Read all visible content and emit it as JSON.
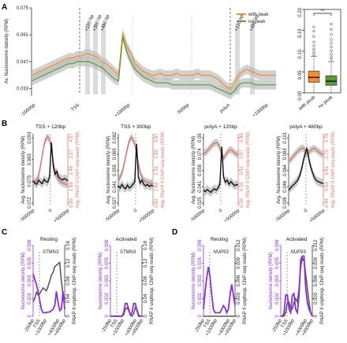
{
  "panels": {
    "A": "A",
    "B": "B",
    "C": "C",
    "D": "D"
  },
  "chart_data": [
    {
      "id": "A-main",
      "type": "line",
      "ylabel": "Av. Nucleosome density (RPM)",
      "yticks": [
        "0.075",
        "0.061",
        "0.047",
        "0.033"
      ],
      "ylim": [
        0.03,
        0.075
      ],
      "xticks": [
        "-1000bp",
        "TSS",
        "+1000bp",
        "-500bp",
        "polyA",
        "+1000bp"
      ],
      "vlines": [
        "TSS",
        "polyA"
      ],
      "peak_labels": [
        "+120 bp",
        "+300 bp",
        "+480 bp",
        "+120 bp",
        "+480 bp"
      ],
      "legend_position": "top-right",
      "colors": {
        "with_peak": "#f28e2b",
        "no_peak": "#5a9a2e",
        "band": "#bdbdbd"
      },
      "series": [
        {
          "name": "with peak",
          "values": [
            0.04,
            0.041,
            0.042,
            0.043,
            0.044,
            0.045,
            0.046,
            0.047,
            0.048,
            0.049,
            0.049,
            0.05,
            0.05,
            0.051,
            0.051,
            0.05,
            0.049,
            0.047,
            0.046,
            0.044,
            0.042,
            0.04,
            0.062,
            0.055,
            0.051,
            0.046,
            0.044,
            0.042,
            0.041,
            0.04,
            0.04,
            0.041,
            0.04,
            0.04,
            0.04,
            0.041,
            0.04,
            0.04,
            0.04,
            0.04,
            0.041,
            0.04,
            0.04,
            0.04,
            0.039,
            0.038,
            0.036,
            0.034,
            0.033,
            0.036,
            0.04,
            0.042,
            0.043,
            0.042,
            0.041,
            0.04,
            0.04,
            0.04,
            0.04,
            0.04
          ]
        },
        {
          "name": "no peak",
          "values": [
            0.037,
            0.038,
            0.039,
            0.04,
            0.041,
            0.042,
            0.043,
            0.044,
            0.045,
            0.046,
            0.046,
            0.047,
            0.047,
            0.047,
            0.047,
            0.046,
            0.045,
            0.044,
            0.042,
            0.04,
            0.038,
            0.037,
            0.06,
            0.052,
            0.047,
            0.043,
            0.041,
            0.039,
            0.038,
            0.037,
            0.036,
            0.036,
            0.036,
            0.036,
            0.035,
            0.035,
            0.035,
            0.035,
            0.035,
            0.035,
            0.035,
            0.035,
            0.035,
            0.035,
            0.034,
            0.033,
            0.032,
            0.031,
            0.03,
            0.032,
            0.035,
            0.036,
            0.036,
            0.036,
            0.035,
            0.035,
            0.035,
            0.035,
            0.035,
            0.035
          ]
        }
      ]
    },
    {
      "id": "A-box",
      "type": "box",
      "yticks": [
        "0.00",
        "0.05",
        "0.10",
        "0.15",
        "0.20"
      ],
      "ylim": [
        0,
        0.2
      ],
      "categories": [
        "with peak",
        "no peak"
      ],
      "significance": "**",
      "boxes": [
        {
          "name": "with peak",
          "q1": 0.025,
          "median": 0.037,
          "q3": 0.052,
          "whisker_low": 0.0,
          "whisker_high": 0.088,
          "outliers": [
            0.092,
            0.098,
            0.105,
            0.113,
            0.122,
            0.135,
            0.148,
            0.158
          ]
        },
        {
          "name": "no peak",
          "q1": 0.018,
          "median": 0.028,
          "q3": 0.041,
          "whisker_low": 0.0,
          "whisker_high": 0.075,
          "outliers": [
            0.08,
            0.086,
            0.093,
            0.101,
            0.11,
            0.119,
            0.128,
            0.14,
            0.152,
            0.165
          ]
        }
      ]
    },
    {
      "id": "B1",
      "type": "line",
      "title": "TSS + 120bp",
      "ylabel": "Avg. Nucleosome density (RPM)",
      "yticks": [
        "0.072",
        "0.075",
        "0.083",
        "0.093"
      ],
      "ylabel2": "Avg. RNAP II ChIP-seq reads (RPM)",
      "yticks2": [
        "0.89",
        "1.68",
        "2.48",
        "3.27",
        "4.07"
      ],
      "xticks": [
        "-5000bp",
        "0",
        "+5000bp"
      ],
      "colors": {
        "nucleosome": "#111111",
        "rnap": "#d9786b",
        "band": "#bfbfbf"
      },
      "series": [
        {
          "name": "nucleosome",
          "values": [
            0.35,
            0.32,
            0.3,
            0.36,
            0.33,
            0.31,
            0.37,
            0.34,
            0.33,
            0.4,
            0.88,
            0.55,
            0.44,
            0.48,
            0.4,
            0.38,
            0.36,
            0.38,
            0.37,
            0.35
          ]
        },
        {
          "name": "rnap",
          "values": [
            0.3,
            0.33,
            0.36,
            0.42,
            0.55,
            0.7,
            0.85,
            0.93,
            0.96,
            0.92,
            0.8,
            0.62,
            0.48,
            0.4,
            0.36,
            0.34,
            0.32,
            0.31,
            0.3,
            0.3
          ]
        }
      ]
    },
    {
      "id": "B2",
      "type": "line",
      "title": "TSS + 300bp",
      "ylabel": "Avg. Nucleosome density (RPM)",
      "yticks": [
        "0.027",
        "0.041",
        "0.055",
        "0.069",
        "0.082"
      ],
      "ylabel2": "Avg. RNAP II ChIP-seq reads (RPM)",
      "yticks2": [
        "0.92",
        "1.63",
        "2.31",
        "2.99",
        "3.67"
      ],
      "xticks": [
        "-5000bp",
        "0",
        "+5000bp"
      ],
      "colors": {
        "nucleosome": "#111111",
        "rnap": "#d9786b",
        "band": "#bfbfbf"
      },
      "series": [
        {
          "name": "nucleosome",
          "values": [
            0.28,
            0.25,
            0.3,
            0.26,
            0.24,
            0.29,
            0.25,
            0.27,
            0.3,
            0.33,
            0.86,
            0.4,
            0.32,
            0.36,
            0.3,
            0.28,
            0.3,
            0.27,
            0.29,
            0.28
          ]
        },
        {
          "name": "rnap",
          "values": [
            0.35,
            0.4,
            0.46,
            0.55,
            0.68,
            0.8,
            0.9,
            0.95,
            0.93,
            0.86,
            0.72,
            0.58,
            0.46,
            0.4,
            0.36,
            0.34,
            0.33,
            0.32,
            0.32,
            0.31
          ]
        }
      ]
    },
    {
      "id": "B3",
      "type": "line",
      "title": "polyA + 120bp",
      "ylabel": "Avg. Nucleosome density (RPM)",
      "yticks": [
        "0.025",
        "0.041",
        "0.058",
        "0.074",
        "0.09"
      ],
      "ylabel2": "Avg. RNAP II ChIP-seq reads (RPM)",
      "yticks2": [
        "0.19",
        "0.35",
        "0.51",
        "0.67",
        "0.83"
      ],
      "xticks": [
        "-5000bp",
        "0",
        "+5000bp"
      ],
      "colors": {
        "nucleosome": "#111111",
        "rnap": "#d9786b",
        "band": "#bfbfbf"
      },
      "series": [
        {
          "name": "nucleosome",
          "values": [
            0.22,
            0.2,
            0.23,
            0.21,
            0.19,
            0.22,
            0.24,
            0.22,
            0.25,
            0.3,
            0.82,
            0.4,
            0.33,
            0.36,
            0.3,
            0.34,
            0.31,
            0.28,
            0.3,
            0.29
          ]
        },
        {
          "name": "rnap",
          "values": [
            0.72,
            0.74,
            0.76,
            0.79,
            0.82,
            0.85,
            0.87,
            0.88,
            0.87,
            0.8,
            0.7,
            0.66,
            0.7,
            0.74,
            0.77,
            0.78,
            0.76,
            0.74,
            0.72,
            0.7
          ]
        }
      ]
    },
    {
      "id": "B4",
      "type": "line",
      "title": "polyA + 480bp",
      "ylabel": "Avg. Nucleosome density (RPM)",
      "yticks": [
        "0.028",
        "0.046",
        "0.064",
        "0.083",
        "0.101"
      ],
      "ylabel2": "Avg. RNAP II ChIP-seq reads (RPM)",
      "yticks2": [
        "0.44",
        "0.53",
        "0.61",
        "0.70",
        "0.78"
      ],
      "xticks": [
        "-5000bp",
        "0",
        "+5000bp"
      ],
      "colors": {
        "nucleosome": "#111111",
        "rnap": "#d9786b",
        "band": "#bfbfbf"
      },
      "series": [
        {
          "name": "nucleosome",
          "values": [
            0.22,
            0.25,
            0.28,
            0.3,
            0.33,
            0.36,
            0.42,
            0.5,
            0.62,
            0.72,
            0.8,
            0.66,
            0.55,
            0.47,
            0.4,
            0.36,
            0.34,
            0.33,
            0.32,
            0.31
          ]
        },
        {
          "name": "rnap",
          "values": [
            0.62,
            0.64,
            0.67,
            0.7,
            0.73,
            0.76,
            0.78,
            0.8,
            0.8,
            0.77,
            0.72,
            0.74,
            0.77,
            0.79,
            0.8,
            0.78,
            0.76,
            0.74,
            0.72,
            0.71
          ]
        }
      ]
    },
    {
      "id": "C1",
      "type": "line",
      "title": "Resting",
      "gene": "STMN3",
      "ylabel": "Nucleosome density (RPM)",
      "yticks": [
        "0",
        "0.002",
        "0.003",
        "0.005",
        "0.006"
      ],
      "ylabel2": "RNAP II unphosp. ChIP-seq reads (RPM)",
      "yticks2": [
        "0",
        "0.04",
        "0.08",
        "0.12",
        "0.16"
      ],
      "xticks": [
        "-250bp",
        "TSS",
        "+1000bp",
        "+4000bp",
        "+4500bp"
      ],
      "colors": {
        "nucleosome": "#8e2fcf",
        "rnap": "#5a5a5a"
      },
      "series": [
        {
          "name": "nucleosome",
          "values": [
            0.6,
            0.52,
            0.45,
            0.35,
            0.22,
            0.1,
            0.05,
            0.05,
            0.05,
            0.06,
            0.06,
            0.08,
            0.1,
            0.15,
            0.35,
            0.2,
            0.08,
            0.1,
            0.35,
            0.1
          ]
        },
        {
          "name": "rnap",
          "values": [
            0.2,
            0.25,
            0.34,
            0.3,
            0.32,
            0.36,
            0.4,
            0.38,
            0.36,
            0.42,
            0.5,
            0.58,
            0.62,
            0.7,
            0.72,
            0.74,
            0.76,
            0.5,
            0.3,
            0.2
          ]
        }
      ]
    },
    {
      "id": "C2",
      "type": "line",
      "title": "Activated",
      "gene": "STMN3",
      "ylabel": "Nucleosome density (RPM)",
      "yticks": [
        "0",
        "0.002",
        "0.003",
        "0.005",
        "0.006"
      ],
      "ylabel2": "RNAP II unphosp. ChIP-seq reads (RPM)",
      "yticks2": [
        "0",
        "0.04",
        "0.08",
        "0.12",
        "0.16"
      ],
      "xticks": [
        "-250bp",
        "TSS",
        "+1000bp",
        "+4000bp",
        "+4500bp"
      ],
      "colors": {
        "nucleosome": "#8e2fcf",
        "rnap": "#5a5a5a"
      },
      "series": [
        {
          "name": "nucleosome",
          "values": [
            0.0,
            0.0,
            0.0,
            0.0,
            0.0,
            0.0,
            0.0,
            0.0,
            0.05,
            0.18,
            0.18,
            0.1,
            0.02,
            0.05,
            0.18,
            0.18,
            0.08,
            0.0,
            0.0,
            0.0
          ]
        },
        {
          "name": "rnap",
          "values": [
            0.0,
            0.0,
            0.0,
            0.0,
            0.0,
            0.0,
            0.0,
            0.0,
            0.02,
            0.1,
            0.12,
            0.08,
            0.02,
            0.0,
            0.04,
            0.12,
            0.1,
            0.02,
            0.0,
            0.0
          ]
        }
      ]
    },
    {
      "id": "D1",
      "type": "line",
      "title": "Resting",
      "gene": "NUP93",
      "ylabel": "Nucleosome density (RPM)",
      "yticks": [
        "0",
        "0.002",
        "0.003",
        "0.005",
        "0.006"
      ],
      "ylabel2": "RNAP II unphosp. ChIP-seq reads (RPM)",
      "yticks2": [
        "0",
        "0.003",
        "0.006",
        "0.009",
        "0.012"
      ],
      "xticks": [
        "-250bp",
        "TSS",
        "+1000bp",
        "+4000bp",
        "+4500bp"
      ],
      "colors": {
        "nucleosome": "#8e2fcf",
        "rnap": "#5a5a5a"
      },
      "series": [
        {
          "name": "nucleosome",
          "values": [
            0.1,
            0.35,
            0.55,
            0.7,
            0.55,
            0.3,
            0.1,
            0.05,
            0.05,
            0.05,
            0.05,
            0.1,
            0.15,
            0.12,
            0.05,
            0.1,
            0.3,
            0.45,
            0.3,
            0.15
          ]
        },
        {
          "name": "rnap",
          "values": [
            0.0,
            0.0,
            0.0,
            0.0,
            0.0,
            0.0,
            0.0,
            0.0,
            0.0,
            0.0,
            0.0,
            0.0,
            0.0,
            0.0,
            0.0,
            0.0,
            0.0,
            0.0,
            0.0,
            0.0
          ]
        }
      ]
    },
    {
      "id": "D2",
      "type": "line",
      "title": "Activated",
      "gene": "NUP93",
      "ylabel": "Nucleosome density (RPM)",
      "yticks": [
        "0",
        "0.002",
        "0.003",
        "0.005",
        "0.006"
      ],
      "ylabel2": "RNAP II unphosp. ChIP-seq reads (RPM)",
      "yticks2": [
        "0",
        "0.003",
        "0.006",
        "0.009",
        "0.012"
      ],
      "xticks": [
        "-250bp",
        "TSS",
        "+1000bp",
        "+4000bp",
        "+4500bp"
      ],
      "colors": {
        "nucleosome": "#8e2fcf",
        "rnap": "#5a5a5a"
      },
      "series": [
        {
          "name": "nucleosome",
          "values": [
            0.0,
            0.0,
            0.05,
            0.3,
            0.3,
            0.1,
            0.05,
            0.3,
            0.32,
            0.1,
            0.05,
            0.3,
            0.8,
            0.85,
            0.85,
            0.4,
            0.2,
            0.1,
            0.05,
            0.0
          ]
        },
        {
          "name": "rnap",
          "values": [
            0.0,
            0.0,
            0.0,
            0.05,
            0.2,
            0.2,
            0.1,
            0.1,
            0.2,
            0.25,
            0.2,
            0.4,
            0.7,
            0.82,
            0.78,
            0.6,
            0.4,
            0.2,
            0.05,
            0.0
          ]
        }
      ]
    }
  ]
}
